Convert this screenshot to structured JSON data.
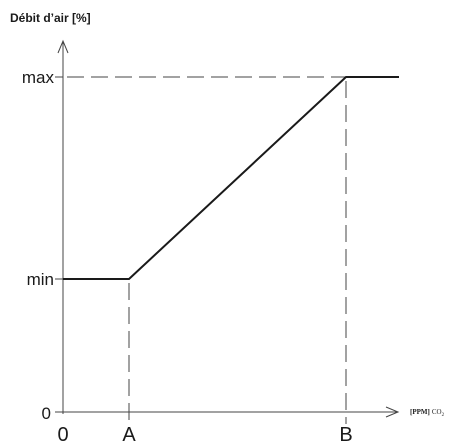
{
  "y_axis_title": "Débit d’air [%]",
  "x_axis_title_prefix": "[PPM]",
  "x_axis_title_suffix": "CO",
  "x_axis_title_subscript": "2",
  "y_ticks": [
    "max",
    "min",
    "0"
  ],
  "x_ticks": [
    "0",
    "A",
    "B"
  ],
  "colors": {
    "axis": "#444444",
    "curve": "#1a1a1a",
    "text": "#1a1a1a",
    "background": "#ffffff"
  },
  "curve": {
    "type": "piecewise-linear",
    "shape": "flat at min up to A, linear rise from min to max between A and B, flat at max after B",
    "points": [
      {
        "x": "0",
        "y": "min"
      },
      {
        "x": "A",
        "y": "min"
      },
      {
        "x": "B",
        "y": "max"
      },
      {
        "x": "beyond B",
        "y": "max"
      }
    ]
  },
  "guide_lines": [
    "dashed vertical at A",
    "dashed vertical at B",
    "dashed horizontal at max"
  ]
}
